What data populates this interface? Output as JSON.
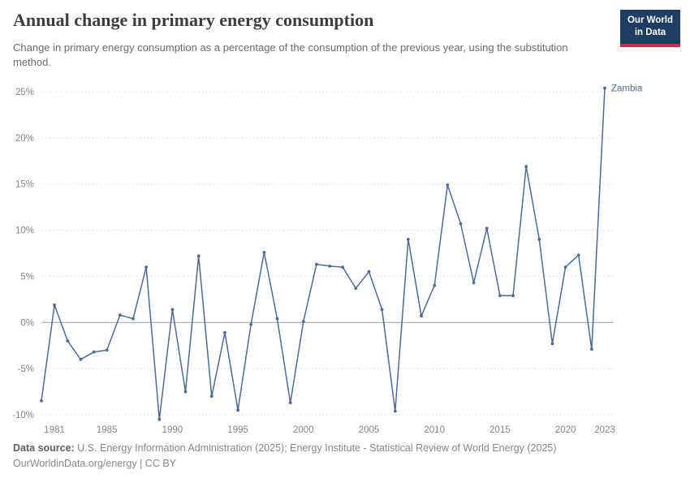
{
  "header": {
    "title": "Annual change in primary energy consumption",
    "subtitle": "Change in primary energy consumption as a percentage of the consumption of the previous year, using the substitution method.",
    "logo": {
      "line1": "Our World",
      "line2": "in Data",
      "bg_color": "#1d3d63",
      "accent_color": "#cf2b46"
    }
  },
  "chart_data": {
    "type": "line",
    "title": "Annual change in primary energy consumption",
    "xlabel": "",
    "ylabel": "",
    "grid": true,
    "legend_position": "end-of-line-label",
    "series_label": "Zambia",
    "line_color": "#4C6A9C",
    "y_ticks": [
      -10,
      -5,
      0,
      5,
      10,
      15,
      20,
      25
    ],
    "y_tick_labels": [
      "-10%",
      "-5%",
      "0%",
      "5%",
      "10%",
      "15%",
      "20%",
      "25%"
    ],
    "x_ticks": [
      1981,
      1985,
      1990,
      1995,
      2000,
      2005,
      2010,
      2015,
      2020,
      2023
    ],
    "x": [
      1980,
      1981,
      1982,
      1983,
      1984,
      1985,
      1986,
      1987,
      1988,
      1989,
      1990,
      1991,
      1992,
      1993,
      1994,
      1995,
      1996,
      1997,
      1998,
      1999,
      2000,
      2001,
      2002,
      2003,
      2004,
      2005,
      2006,
      2007,
      2008,
      2009,
      2010,
      2011,
      2012,
      2013,
      2014,
      2015,
      2016,
      2017,
      2018,
      2019,
      2020,
      2021,
      2022,
      2023
    ],
    "values": [
      -8.5,
      1.9,
      -2.0,
      -4.0,
      -3.2,
      -3.0,
      0.8,
      0.4,
      6.0,
      -10.5,
      1.4,
      -7.5,
      7.2,
      -8.0,
      -1.1,
      -9.5,
      -0.2,
      7.6,
      0.4,
      -8.7,
      0.1,
      6.3,
      6.1,
      6.0,
      3.7,
      5.5,
      1.4,
      -9.6,
      9.0,
      0.7,
      4.0,
      14.9,
      10.7,
      4.3,
      10.2,
      2.9,
      2.9,
      16.9,
      9.0,
      -2.3,
      6.0,
      7.3,
      -2.9,
      25.4
    ]
  },
  "footer": {
    "source_label": "Data source:",
    "source_text": "U.S. Energy Information Administration (2025); Energy Institute - Statistical Review of World Energy (2025)",
    "license_line": "OurWorldinData.org/energy | CC BY"
  }
}
